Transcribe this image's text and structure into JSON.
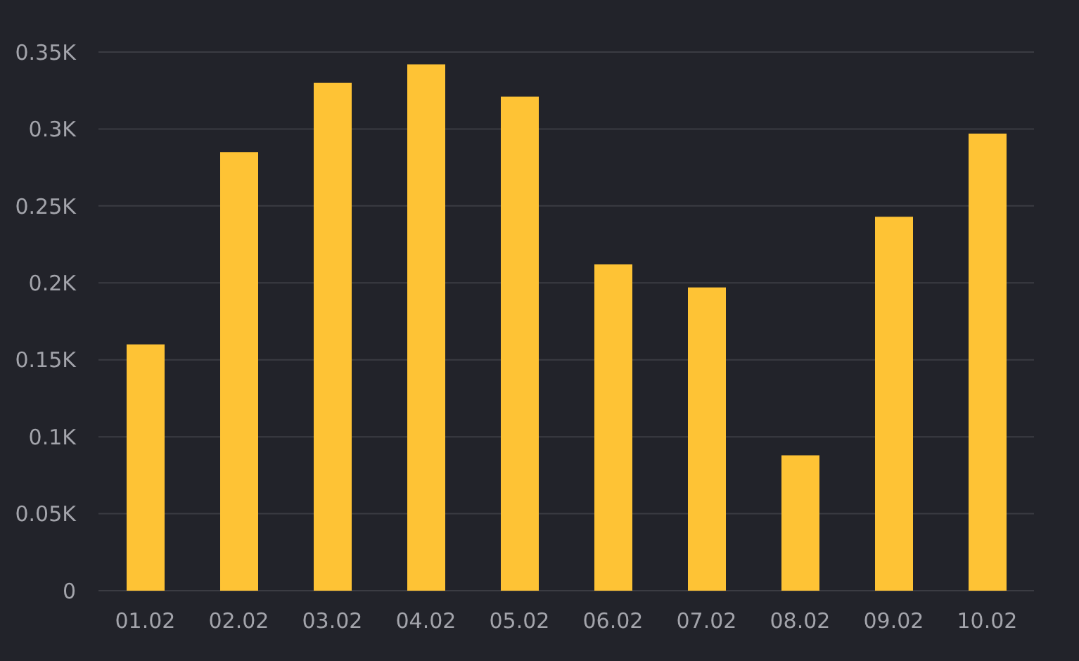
{
  "chart_data": {
    "type": "bar",
    "categories": [
      "01.02",
      "02.02",
      "03.02",
      "04.02",
      "05.02",
      "06.02",
      "07.02",
      "08.02",
      "09.02",
      "10.02"
    ],
    "values": [
      160,
      285,
      330,
      342,
      321,
      212,
      197,
      88,
      243,
      297
    ],
    "color": "#fec335",
    "ylim": [
      0,
      350
    ],
    "yticks": [
      0,
      {
        "value": 50,
        "label": "0.05K"
      },
      {
        "value": 100,
        "label": "0.1K"
      },
      {
        "value": 150,
        "label": "0.15K"
      },
      {
        "value": 200,
        "label": "0.2K"
      },
      {
        "value": 250,
        "label": "0.25K"
      },
      {
        "value": 300,
        "label": "0.3K"
      },
      {
        "value": 350,
        "label": "0.35K"
      }
    ],
    "grid": "y",
    "legend": false
  }
}
